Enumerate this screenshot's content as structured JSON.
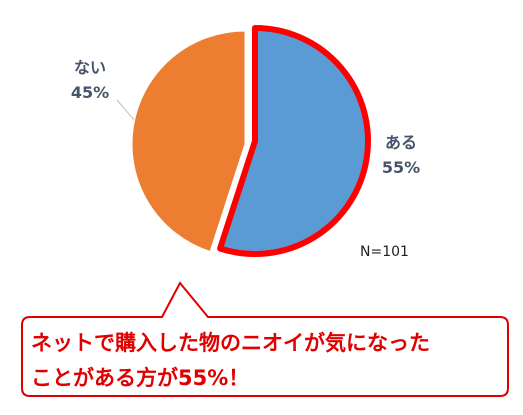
{
  "chart_data": {
    "type": "pie",
    "categories": [
      "ある",
      "ない"
    ],
    "values": [
      55,
      45
    ],
    "value_labels": [
      "55%",
      "45%"
    ],
    "colors": [
      "#5b9bd5",
      "#ed7d31"
    ],
    "highlight": {
      "slice": "ある",
      "outline_color": "#ff0000"
    },
    "start": "12 o'clock, clockwise",
    "annotation": "N=101"
  },
  "callout": {
    "line1": "ネットで購入した物のニオイが気になった",
    "line2": "ことがある方が55%！",
    "text_color": "#e00000",
    "border_color": "#e00000"
  }
}
